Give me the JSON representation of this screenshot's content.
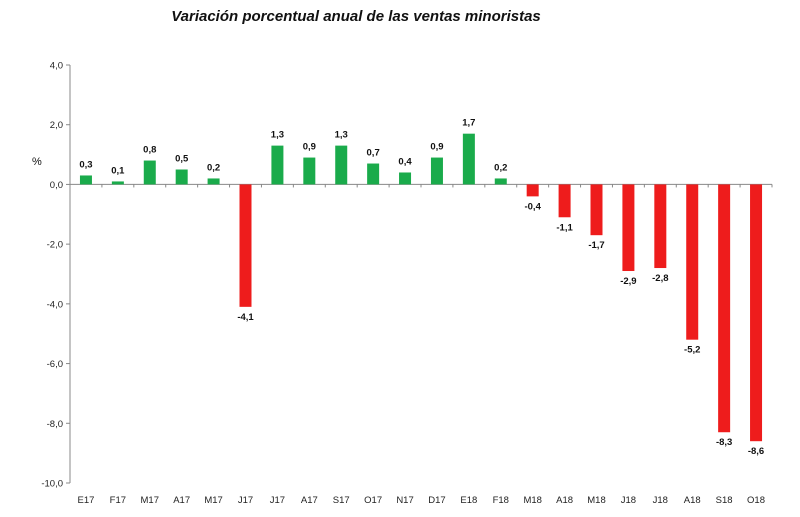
{
  "chart_data": {
    "type": "bar",
    "title": "Variación porcentual anual de las ventas minoristas",
    "ylabel": "%",
    "xlabel": "",
    "ylim": [
      -10,
      4
    ],
    "yticks": [
      4,
      2,
      0,
      -2,
      -4,
      -6,
      -8,
      -10
    ],
    "ytick_labels": [
      "4,0",
      "2,0",
      "0,0",
      "-2,0",
      "-4,0",
      "-6,0",
      "-8,0",
      "-10,0"
    ],
    "categories": [
      "E17",
      "F17",
      "M17",
      "A17",
      "M17",
      "J17",
      "J17",
      "A17",
      "S17",
      "O17",
      "N17",
      "D17",
      "E18",
      "F18",
      "M18",
      "A18",
      "M18",
      "J18",
      "J18",
      "A18",
      "S18",
      "O18"
    ],
    "values": [
      0.3,
      0.1,
      0.8,
      0.5,
      0.2,
      -4.1,
      1.3,
      0.9,
      1.3,
      0.7,
      0.4,
      0.9,
      1.7,
      0.2,
      -0.4,
      -1.1,
      -1.7,
      -2.9,
      -2.8,
      -5.2,
      -8.3,
      -8.6
    ],
    "value_labels": [
      "0,3",
      "0,1",
      "0,8",
      "0,5",
      "0,2",
      "-4,1",
      "1,3",
      "0,9",
      "1,3",
      "0,7",
      "0,4",
      "0,9",
      "1,7",
      "0,2",
      "-0,4",
      "-1,1",
      "-1,7",
      "-2,9",
      "-2,8",
      "-5,2",
      "-8,3",
      "-8,6"
    ],
    "colors": {
      "positive": "#1aab4b",
      "negative": "#ee1c1c",
      "axis": "#888888"
    },
    "grid": false
  }
}
